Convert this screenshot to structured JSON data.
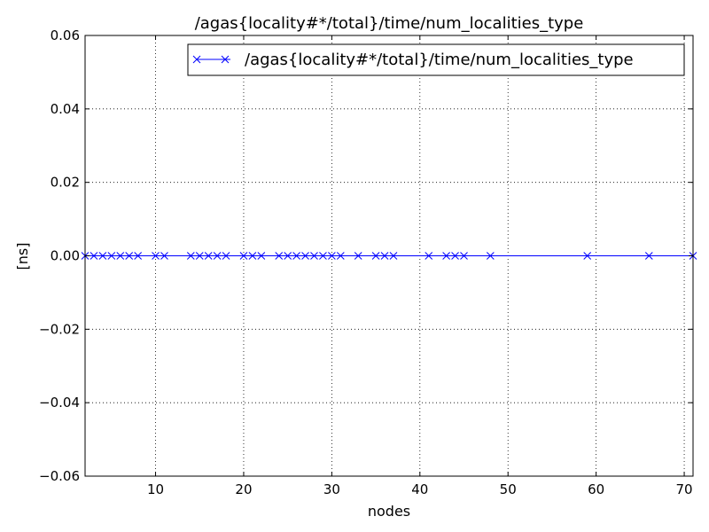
{
  "chart_data": {
    "type": "line",
    "title": "/agas{locality#*/total}/time/num_localities_type",
    "xlabel": "nodes",
    "ylabel": "[ns]",
    "xlim": [
      2,
      71
    ],
    "ylim": [
      -0.06,
      0.06
    ],
    "x_ticks": [
      10,
      20,
      30,
      40,
      50,
      60,
      70
    ],
    "y_ticks": [
      -0.06,
      -0.04,
      -0.02,
      0.0,
      0.02,
      0.04,
      0.06
    ],
    "x_tick_labels": [
      "10",
      "20",
      "30",
      "40",
      "50",
      "60",
      "70"
    ],
    "y_tick_labels": [
      "−0.06",
      "−0.04",
      "−0.02",
      "0.00",
      "0.02",
      "0.04",
      "0.06"
    ],
    "grid": true,
    "legend_position": "top-right",
    "series": [
      {
        "name": "/agas{locality#*/total}/time/num_localities_type",
        "color": "#0000ff",
        "marker": "x",
        "x": [
          2,
          3,
          4,
          5,
          6,
          7,
          8,
          10,
          11,
          14,
          15,
          16,
          17,
          18,
          20,
          21,
          22,
          24,
          25,
          26,
          27,
          28,
          29,
          30,
          31,
          33,
          35,
          36,
          37,
          41,
          43,
          44,
          45,
          48,
          59,
          66,
          71
        ],
        "y": [
          0,
          0,
          0,
          0,
          0,
          0,
          0,
          0,
          0,
          0,
          0,
          0,
          0,
          0,
          0,
          0,
          0,
          0,
          0,
          0,
          0,
          0,
          0,
          0,
          0,
          0,
          0,
          0,
          0,
          0,
          0,
          0,
          0,
          0,
          0,
          0,
          0
        ]
      }
    ]
  }
}
